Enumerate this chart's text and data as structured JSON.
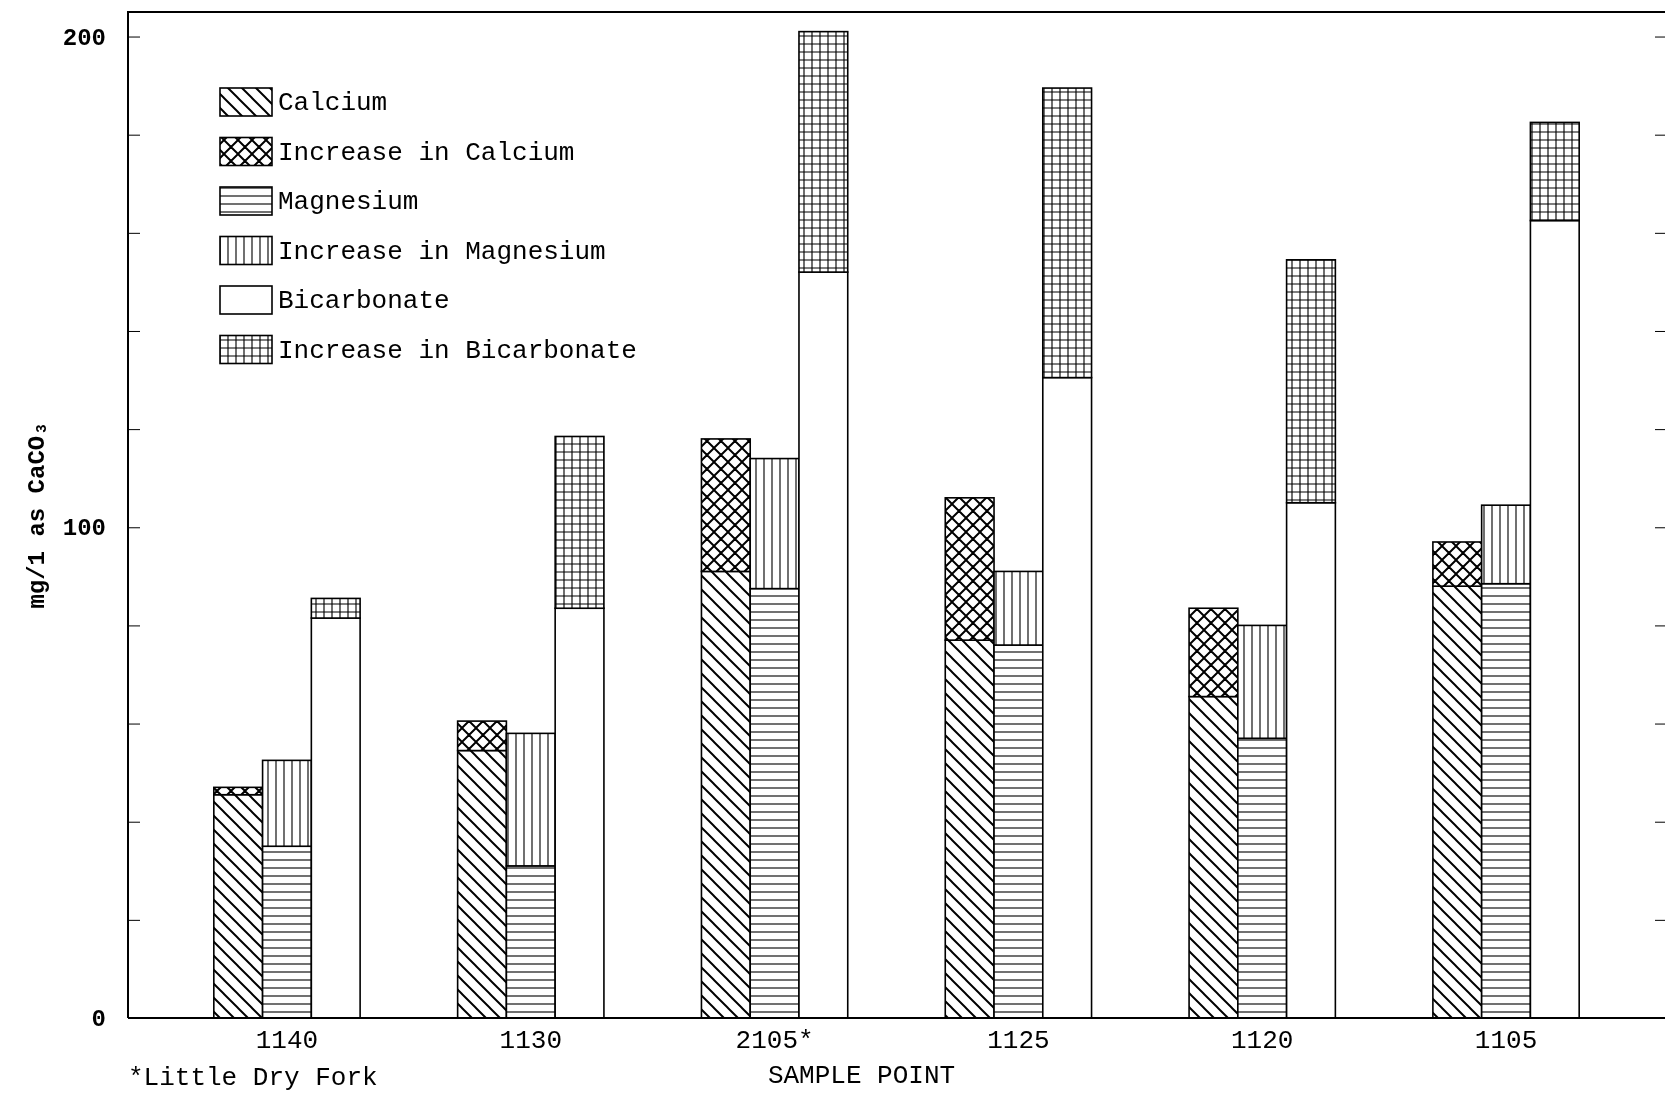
{
  "chart_data": {
    "type": "bar",
    "stacked": true,
    "xlabel": "SAMPLE POINT",
    "ylabel": "mg/1 as CaCO₃",
    "categories": [
      null,
      null,
      "1140",
      null,
      null,
      null,
      null,
      "1130",
      null,
      null,
      null,
      null,
      "2105*",
      null,
      null,
      null,
      null,
      "1125",
      null,
      null,
      null,
      null,
      "1120",
      null,
      null,
      null,
      null,
      "1105",
      null,
      null
    ],
    "series": [
      {
        "name": "Calcium",
        "color": "#000000",
        "values": [
          null,
          45.5,
          null,
          null,
          null,
          null,
          54.5,
          null,
          null,
          null,
          null,
          91,
          null,
          null,
          null,
          null,
          77,
          null,
          null,
          null,
          null,
          65.5,
          null,
          null,
          null,
          null,
          88,
          null,
          null,
          null
        ]
      },
      {
        "name": "Increase in Calcium",
        "color": "#000000",
        "values": [
          null,
          1.5,
          null,
          null,
          null,
          null,
          6,
          null,
          null,
          null,
          null,
          27,
          null,
          null,
          null,
          null,
          29,
          null,
          null,
          null,
          null,
          18,
          null,
          null,
          null,
          null,
          9,
          null,
          null,
          null
        ]
      },
      {
        "name": "Magnesium",
        "color": "#000000",
        "values": [
          null,
          null,
          35,
          null,
          null,
          null,
          null,
          31,
          null,
          null,
          null,
          null,
          87.5,
          null,
          null,
          null,
          null,
          76,
          null,
          null,
          null,
          null,
          57,
          null,
          null,
          null,
          null,
          88.5,
          null,
          null
        ]
      },
      {
        "name": "Increase in Magnesium",
        "color": "#000000",
        "values": [
          null,
          null,
          17.5,
          null,
          null,
          null,
          null,
          27,
          null,
          null,
          null,
          null,
          26.5,
          null,
          null,
          null,
          null,
          15,
          null,
          null,
          null,
          null,
          23,
          null,
          null,
          null,
          null,
          16,
          null,
          null
        ]
      },
      {
        "name": "Bicarbonate",
        "color": "#000000",
        "values": [
          null,
          null,
          null,
          81.5,
          null,
          null,
          null,
          null,
          83.5,
          null,
          null,
          null,
          null,
          152,
          null,
          null,
          null,
          null,
          130.5,
          null,
          null,
          null,
          null,
          105,
          null,
          null,
          null,
          null,
          162.5,
          null
        ]
      },
      {
        "name": "Increase in Bicarbonate",
        "color": "#000000",
        "values": [
          null,
          null,
          null,
          4,
          null,
          null,
          null,
          null,
          35,
          null,
          null,
          null,
          null,
          49,
          null,
          null,
          null,
          null,
          59,
          null,
          null,
          null,
          null,
          49.5,
          null,
          null,
          null,
          null,
          20,
          null
        ]
      }
    ],
    "ylim": [
      0,
      205
    ],
    "yticks": [
      0,
      {
        "value": 20,
        "label": null
      },
      {
        "value": 40,
        "label": null
      },
      {
        "value": 60,
        "label": null
      },
      {
        "value": 80,
        "label": null
      },
      100,
      {
        "value": 120,
        "label": null
      },
      {
        "value": 140,
        "label": null
      },
      {
        "value": 160,
        "label": null
      },
      {
        "value": 180,
        "label": null
      },
      200
    ],
    "legend": "top left",
    "annotations": [
      "*Little Dry Fork"
    ]
  }
}
